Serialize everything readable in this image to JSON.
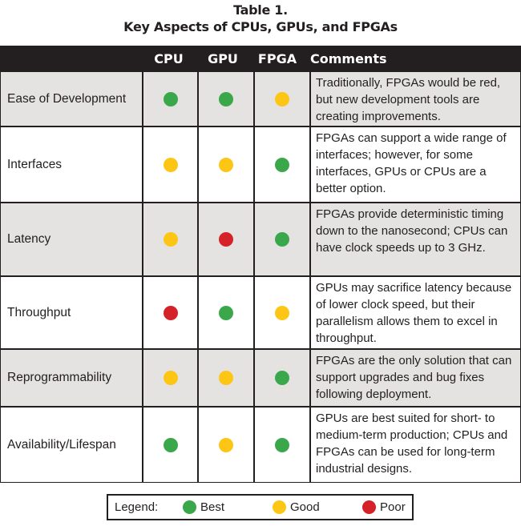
{
  "title": {
    "line1": "Table 1.",
    "line2": "Key Aspects of CPUs, GPUs, and FPGAs"
  },
  "colors": {
    "best": "#3aa84a",
    "good": "#fdc614",
    "poor": "#d52128"
  },
  "table": {
    "headers": [
      "",
      "CPU",
      "GPU",
      "FPGA",
      "Comments"
    ],
    "rows": [
      {
        "aspect": "Ease of Development",
        "cpu": "best",
        "gpu": "best",
        "fpga": "good",
        "comment": "Traditionally, FPGAs would be red, but new development tools are creating improvements."
      },
      {
        "aspect": "Interfaces",
        "cpu": "good",
        "gpu": "good",
        "fpga": "best",
        "comment": "FPGAs can support a wide range of interfaces; however, for some interfaces, GPUs or CPUs are a better option."
      },
      {
        "aspect": "Latency",
        "cpu": "good",
        "gpu": "poor",
        "fpga": "best",
        "comment": "FPGAs provide deterministic timing down to the nanosecond; CPUs can have clock speeds up to 3 GHz."
      },
      {
        "aspect": "Throughput",
        "cpu": "poor",
        "gpu": "best",
        "fpga": "good",
        "comment": "GPUs may sacrifice latency because of lower clock speed, but their parallelism allows them to excel in throughput."
      },
      {
        "aspect": "Reprogrammability",
        "cpu": "good",
        "gpu": "good",
        "fpga": "best",
        "comment": "FPGAs are the only solution that can support upgrades and bug fixes following deployment."
      },
      {
        "aspect": "Availability/Lifespan",
        "cpu": "best",
        "gpu": "good",
        "fpga": "best",
        "comment": "GPUs are best suited for short- to medium-term production; CPUs and FPGAs can be used for long-term industrial designs."
      }
    ]
  },
  "legend": {
    "label": "Legend:",
    "items": [
      {
        "key": "best",
        "label": "Best"
      },
      {
        "key": "good",
        "label": "Good"
      },
      {
        "key": "poor",
        "label": "Poor"
      }
    ]
  }
}
